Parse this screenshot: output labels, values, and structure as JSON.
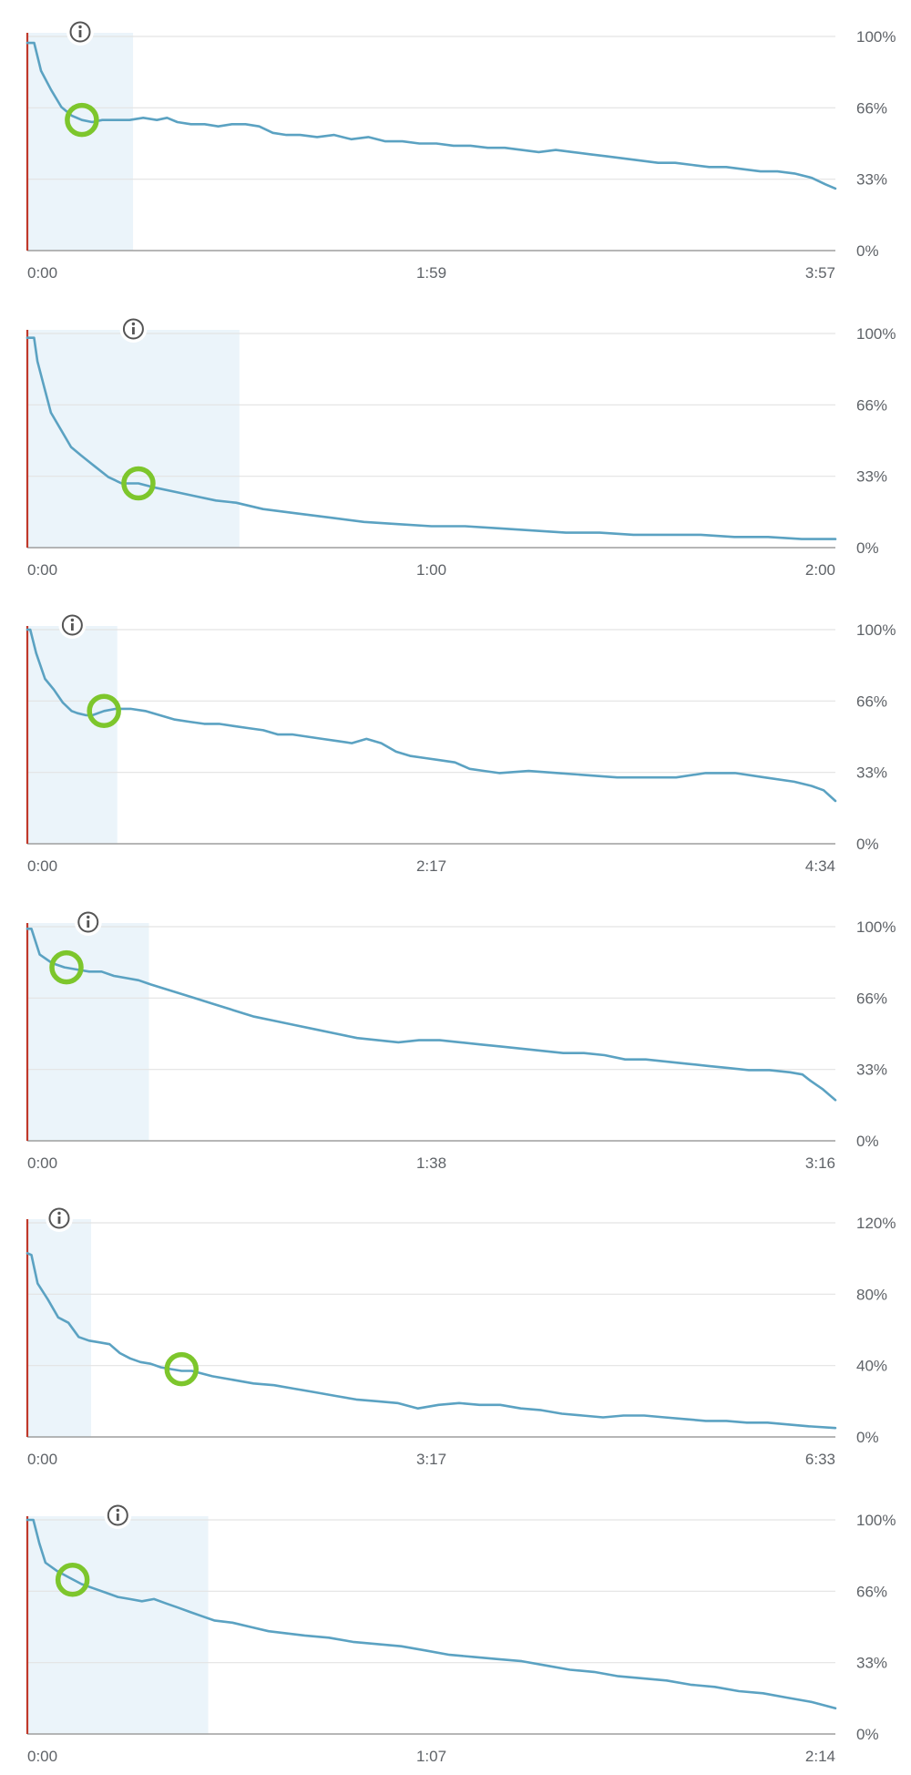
{
  "chart_data": [
    {
      "type": "line",
      "x_tick_labels": [
        "0:00",
        "1:59",
        "3:57"
      ],
      "y_tick_labels": [
        "0%",
        "33%",
        "66%",
        "100%"
      ],
      "ylim": [
        0,
        100
      ],
      "duration_seconds": 237,
      "highlight_range_seconds": [
        0,
        31
      ],
      "annotation_point": {
        "x": 16,
        "y": 61
      },
      "info_icon": "info-icon",
      "grid": true,
      "series": [
        {
          "x": [
            0,
            2,
            4,
            7,
            10,
            13,
            16,
            19,
            22,
            26,
            30,
            34,
            38,
            41,
            44,
            48,
            52,
            56,
            60,
            64,
            68,
            72,
            76,
            80,
            85,
            90,
            95,
            100,
            105,
            110,
            115,
            120,
            125,
            130,
            135,
            140,
            145,
            150,
            155,
            160,
            165,
            170,
            175,
            180,
            185,
            190,
            195,
            200,
            205,
            210,
            215,
            220,
            225,
            230,
            234,
            237
          ],
          "y": [
            97,
            97,
            84,
            75,
            67,
            63,
            61,
            60,
            61,
            61,
            61,
            62,
            61,
            62,
            60,
            59,
            59,
            58,
            59,
            59,
            58,
            55,
            54,
            54,
            53,
            54,
            52,
            53,
            51,
            51,
            50,
            50,
            49,
            49,
            48,
            48,
            47,
            46,
            47,
            46,
            45,
            44,
            43,
            42,
            41,
            41,
            40,
            39,
            39,
            38,
            37,
            37,
            36,
            34,
            31,
            29
          ]
        }
      ]
    },
    {
      "type": "line",
      "x_tick_labels": [
        "0:00",
        "1:00",
        "2:00"
      ],
      "y_tick_labels": [
        "0%",
        "33%",
        "66%",
        "100%"
      ],
      "ylim": [
        0,
        100
      ],
      "duration_seconds": 120,
      "highlight_range_seconds": [
        0,
        31.5
      ],
      "annotation_point": {
        "x": 16.5,
        "y": 30
      },
      "info_icon": "info-icon",
      "grid": true,
      "series": [
        {
          "x": [
            0,
            1,
            1.5,
            2.5,
            3.5,
            5,
            6.5,
            8,
            10,
            12,
            14,
            16.5,
            19,
            22,
            25,
            28,
            31,
            35,
            40,
            45,
            50,
            55,
            60,
            65,
            70,
            75,
            80,
            85,
            90,
            95,
            100,
            105,
            110,
            115,
            120
          ],
          "y": [
            98,
            98,
            87,
            75,
            63,
            55,
            47,
            43,
            38,
            33,
            30,
            30,
            28,
            26,
            24,
            22,
            21,
            18,
            16,
            14,
            12,
            11,
            10,
            10,
            9,
            8,
            7,
            7,
            6,
            6,
            6,
            5,
            5,
            4,
            4
          ]
        }
      ]
    },
    {
      "type": "line",
      "x_tick_labels": [
        "0:00",
        "2:17",
        "4:34"
      ],
      "y_tick_labels": [
        "0%",
        "33%",
        "66%",
        "100%"
      ],
      "ylim": [
        0,
        100
      ],
      "duration_seconds": 274,
      "highlight_range_seconds": [
        0,
        30.5
      ],
      "annotation_point": {
        "x": 26,
        "y": 62
      },
      "info_icon": "info-icon",
      "grid": true,
      "series": [
        {
          "x": [
            0,
            1,
            3,
            6,
            9,
            12,
            15,
            17,
            20,
            22,
            26,
            30,
            35,
            40,
            45,
            50,
            55,
            60,
            65,
            70,
            75,
            80,
            85,
            90,
            95,
            100,
            105,
            110,
            115,
            120,
            125,
            130,
            135,
            140,
            145,
            150,
            155,
            160,
            170,
            180,
            190,
            200,
            210,
            220,
            230,
            240,
            250,
            260,
            266,
            270,
            274
          ],
          "y": [
            100,
            100,
            89,
            77,
            72,
            66,
            62,
            61,
            60,
            60,
            62,
            63,
            63,
            62,
            60,
            58,
            57,
            56,
            56,
            55,
            54,
            53,
            51,
            51,
            50,
            49,
            48,
            47,
            49,
            47,
            43,
            41,
            40,
            39,
            38,
            35,
            34,
            33,
            34,
            33,
            32,
            31,
            31,
            31,
            33,
            33,
            31,
            29,
            27,
            25,
            20
          ]
        }
      ]
    },
    {
      "type": "line",
      "x_tick_labels": [
        "0:00",
        "1:38",
        "3:16"
      ],
      "y_tick_labels": [
        "0%",
        "33%",
        "66%",
        "100%"
      ],
      "ylim": [
        0,
        100
      ],
      "duration_seconds": 196,
      "highlight_range_seconds": [
        0,
        29.5
      ],
      "annotation_point": {
        "x": 9.5,
        "y": 81
      },
      "info_icon": "info-icon",
      "grid": true,
      "series": [
        {
          "x": [
            0,
            1,
            3,
            6,
            9,
            12,
            15,
            18,
            21,
            24,
            27,
            30,
            35,
            40,
            45,
            50,
            55,
            60,
            65,
            70,
            75,
            80,
            85,
            90,
            95,
            100,
            105,
            110,
            115,
            120,
            125,
            130,
            135,
            140,
            145,
            150,
            155,
            160,
            165,
            170,
            175,
            180,
            185,
            188,
            190,
            193,
            196
          ],
          "y": [
            99,
            99,
            87,
            83,
            81,
            80,
            79,
            79,
            77,
            76,
            75,
            73,
            70,
            67,
            64,
            61,
            58,
            56,
            54,
            52,
            50,
            48,
            47,
            46,
            47,
            47,
            46,
            45,
            44,
            43,
            42,
            41,
            41,
            40,
            38,
            38,
            37,
            36,
            35,
            34,
            33,
            33,
            32,
            31,
            28,
            24,
            19
          ]
        }
      ]
    },
    {
      "type": "line",
      "x_tick_labels": [
        "0:00",
        "3:17",
        "6:33"
      ],
      "y_tick_labels": [
        "0%",
        "40%",
        "80%",
        "120%"
      ],
      "ylim": [
        0,
        120
      ],
      "duration_seconds": 393,
      "highlight_range_seconds": [
        0,
        31
      ],
      "annotation_point": {
        "x": 75,
        "y": 38
      },
      "info_icon": "info-icon",
      "grid": true,
      "series": [
        {
          "x": [
            0,
            2,
            5,
            10,
            15,
            20,
            25,
            30,
            35,
            40,
            45,
            50,
            55,
            60,
            65,
            70,
            75,
            80,
            90,
            100,
            110,
            120,
            130,
            140,
            150,
            160,
            170,
            180,
            190,
            200,
            210,
            220,
            230,
            240,
            250,
            260,
            270,
            280,
            290,
            300,
            310,
            320,
            330,
            340,
            350,
            360,
            370,
            380,
            393
          ],
          "y": [
            103,
            102,
            86,
            77,
            67,
            64,
            56,
            54,
            53,
            52,
            47,
            44,
            42,
            41,
            39,
            38,
            37,
            37,
            34,
            32,
            30,
            29,
            27,
            25,
            23,
            21,
            20,
            19,
            16,
            18,
            19,
            18,
            18,
            16,
            15,
            13,
            12,
            11,
            12,
            12,
            11,
            10,
            9,
            9,
            8,
            8,
            7,
            6,
            5
          ]
        }
      ]
    },
    {
      "type": "line",
      "x_tick_labels": [
        "0:00",
        "1:07",
        "2:14"
      ],
      "y_tick_labels": [
        "0%",
        "33%",
        "66%",
        "100%"
      ],
      "ylim": [
        0,
        100
      ],
      "duration_seconds": 134,
      "highlight_range_seconds": [
        0,
        30
      ],
      "annotation_point": {
        "x": 7.5,
        "y": 72
      },
      "info_icon": "info-icon",
      "grid": true,
      "series": [
        {
          "x": [
            0,
            1,
            2,
            3,
            5,
            7,
            9,
            11,
            13,
            15,
            17,
            19,
            21,
            23,
            25,
            27,
            29,
            31,
            34,
            37,
            40,
            43,
            46,
            50,
            54,
            58,
            62,
            66,
            70,
            74,
            78,
            82,
            86,
            90,
            94,
            98,
            102,
            106,
            110,
            114,
            118,
            122,
            126,
            130,
            134
          ],
          "y": [
            100,
            100,
            89,
            80,
            76,
            73,
            70,
            68,
            66,
            64,
            63,
            62,
            63,
            61,
            59,
            57,
            55,
            53,
            52,
            50,
            48,
            47,
            46,
            45,
            43,
            42,
            41,
            39,
            37,
            36,
            35,
            34,
            32,
            30,
            29,
            27,
            26,
            25,
            23,
            22,
            20,
            19,
            17,
            15,
            12
          ]
        }
      ]
    }
  ]
}
